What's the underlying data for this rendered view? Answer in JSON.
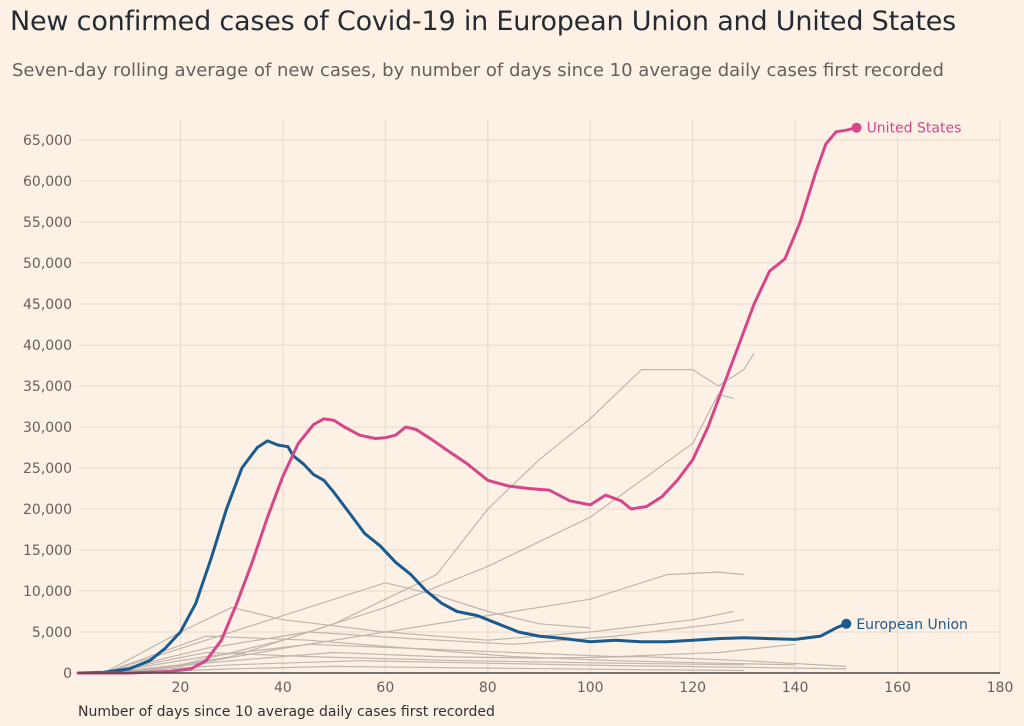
{
  "chart_data": {
    "type": "line",
    "title": "New confirmed cases of Covid-19 in European Union and United States",
    "subtitle": "Seven-day rolling average of new cases, by number of days since 10 average daily cases first recorded",
    "xlabel": "Number of days since 10 average daily cases first recorded",
    "ylabel": "",
    "xlim": [
      0,
      180
    ],
    "ylim": [
      0,
      65000
    ],
    "x_ticks": [
      20,
      40,
      60,
      80,
      100,
      120,
      140,
      160,
      180
    ],
    "y_ticks": [
      0,
      5000,
      10000,
      15000,
      20000,
      25000,
      30000,
      35000,
      40000,
      45000,
      50000,
      55000,
      60000,
      65000
    ],
    "y_tick_labels": [
      "0",
      "5,000",
      "10,000",
      "15,000",
      "20,000",
      "25,000",
      "30,000",
      "35,000",
      "40,000",
      "45,000",
      "50,000",
      "55,000",
      "60,000",
      "65,000"
    ],
    "x_tick_labels": [
      "20",
      "40",
      "60",
      "80",
      "100",
      "120",
      "140",
      "160",
      "180"
    ],
    "grid": true,
    "colors": {
      "us": "#d6478a",
      "eu": "#1b5a8e",
      "other": "#bfb6ad",
      "grid": "#e6d9cc",
      "background": "#fdf1e6"
    },
    "series": [
      {
        "name": "United States",
        "highlight": true,
        "x": [
          0,
          10,
          18,
          22,
          25,
          28,
          31,
          34,
          37,
          40,
          43,
          46,
          48,
          50,
          52,
          55,
          58,
          60,
          62,
          64,
          66,
          69,
          72,
          76,
          80,
          84,
          88,
          92,
          96,
          100,
          103,
          106,
          108,
          111,
          114,
          117,
          120,
          123,
          126,
          129,
          132,
          135,
          138,
          141,
          144,
          146,
          148,
          150,
          152
        ],
        "values": [
          0,
          0,
          200,
          500,
          1500,
          4000,
          8500,
          13500,
          19000,
          24000,
          28000,
          30300,
          31000,
          30800,
          30000,
          29000,
          28600,
          28700,
          29000,
          30000,
          29700,
          28500,
          27200,
          25500,
          23500,
          22800,
          22500,
          22300,
          21000,
          20500,
          21700,
          21000,
          20000,
          20300,
          21500,
          23500,
          26000,
          30000,
          35000,
          40000,
          45000,
          49000,
          50500,
          55000,
          61000,
          64500,
          66000,
          66200,
          66500
        ]
      },
      {
        "name": "European Union",
        "highlight": true,
        "x": [
          0,
          5,
          10,
          14,
          17,
          20,
          23,
          26,
          29,
          32,
          35,
          37,
          39,
          41,
          42,
          44,
          46,
          48,
          50,
          53,
          56,
          59,
          62,
          65,
          68,
          71,
          74,
          78,
          82,
          86,
          90,
          95,
          100,
          105,
          110,
          115,
          120,
          125,
          130,
          135,
          140,
          145,
          148,
          150
        ],
        "values": [
          0,
          100,
          500,
          1500,
          3000,
          5000,
          8500,
          14000,
          20000,
          25000,
          27500,
          28300,
          27800,
          27600,
          26500,
          25500,
          24200,
          23500,
          22000,
          19500,
          17000,
          15500,
          13500,
          12000,
          10000,
          8500,
          7500,
          7000,
          6000,
          5000,
          4500,
          4200,
          3800,
          4000,
          3800,
          3800,
          4000,
          4200,
          4300,
          4200,
          4100,
          4500,
          5500,
          6000
        ]
      },
      {
        "name": "",
        "x": [
          5,
          20,
          40,
          60,
          80,
          100,
          120,
          125,
          128
        ],
        "values": [
          0,
          1000,
          4000,
          8000,
          13000,
          19000,
          28000,
          34000,
          33500
        ]
      },
      {
        "name": "",
        "x": [
          10,
          30,
          50,
          70,
          80,
          90,
          100,
          110,
          120,
          125,
          130,
          132
        ],
        "values": [
          0,
          2000,
          6000,
          12000,
          20000,
          26000,
          31000,
          37000,
          37000,
          35000,
          37000,
          39000
        ]
      },
      {
        "name": "",
        "x": [
          5,
          20,
          40,
          60,
          80,
          100,
          115,
          125,
          130
        ],
        "values": [
          0,
          800,
          3000,
          5000,
          7000,
          9000,
          12000,
          12300,
          12000
        ]
      },
      {
        "name": "",
        "x": [
          5,
          20,
          35,
          50,
          60,
          70,
          80,
          90,
          100
        ],
        "values": [
          0,
          3000,
          6000,
          9000,
          11000,
          9500,
          7500,
          6000,
          5500
        ]
      },
      {
        "name": "",
        "x": [
          5,
          20,
          30,
          40,
          60,
          80,
          100,
          120,
          128
        ],
        "values": [
          0,
          5000,
          8000,
          6500,
          5000,
          4000,
          5000,
          6500,
          7500
        ]
      },
      {
        "name": "",
        "x": [
          5,
          25,
          45,
          65,
          85,
          105,
          125,
          130
        ],
        "values": [
          0,
          3000,
          5000,
          4200,
          3500,
          4500,
          6000,
          6500
        ]
      },
      {
        "name": "",
        "x": [
          5,
          25,
          45,
          65,
          85,
          105,
          125,
          140
        ],
        "values": [
          0,
          2000,
          3500,
          3000,
          2500,
          2000,
          2500,
          3500
        ]
      },
      {
        "name": "",
        "x": [
          5,
          30,
          50,
          70,
          90,
          110,
          130,
          150
        ],
        "values": [
          0,
          1500,
          2500,
          2000,
          1800,
          2000,
          1500,
          800
        ]
      },
      {
        "name": "",
        "x": [
          5,
          30,
          55,
          80,
          105,
          130,
          150
        ],
        "values": [
          0,
          1000,
          1500,
          1200,
          900,
          700,
          500
        ]
      },
      {
        "name": "",
        "x": [
          5,
          25,
          45,
          65,
          85,
          105,
          125,
          140
        ],
        "values": [
          0,
          4500,
          4000,
          3000,
          2000,
          1500,
          1200,
          1000
        ]
      },
      {
        "name": "",
        "x": [
          5,
          30,
          50,
          80,
          110,
          130
        ],
        "values": [
          0,
          500,
          800,
          600,
          400,
          300
        ]
      },
      {
        "name": "",
        "x": [
          5,
          25,
          45,
          75,
          105,
          130
        ],
        "values": [
          0,
          2500,
          2000,
          1500,
          1200,
          1000
        ]
      }
    ],
    "end_labels": {
      "us": "United States",
      "eu": "European Union"
    }
  }
}
